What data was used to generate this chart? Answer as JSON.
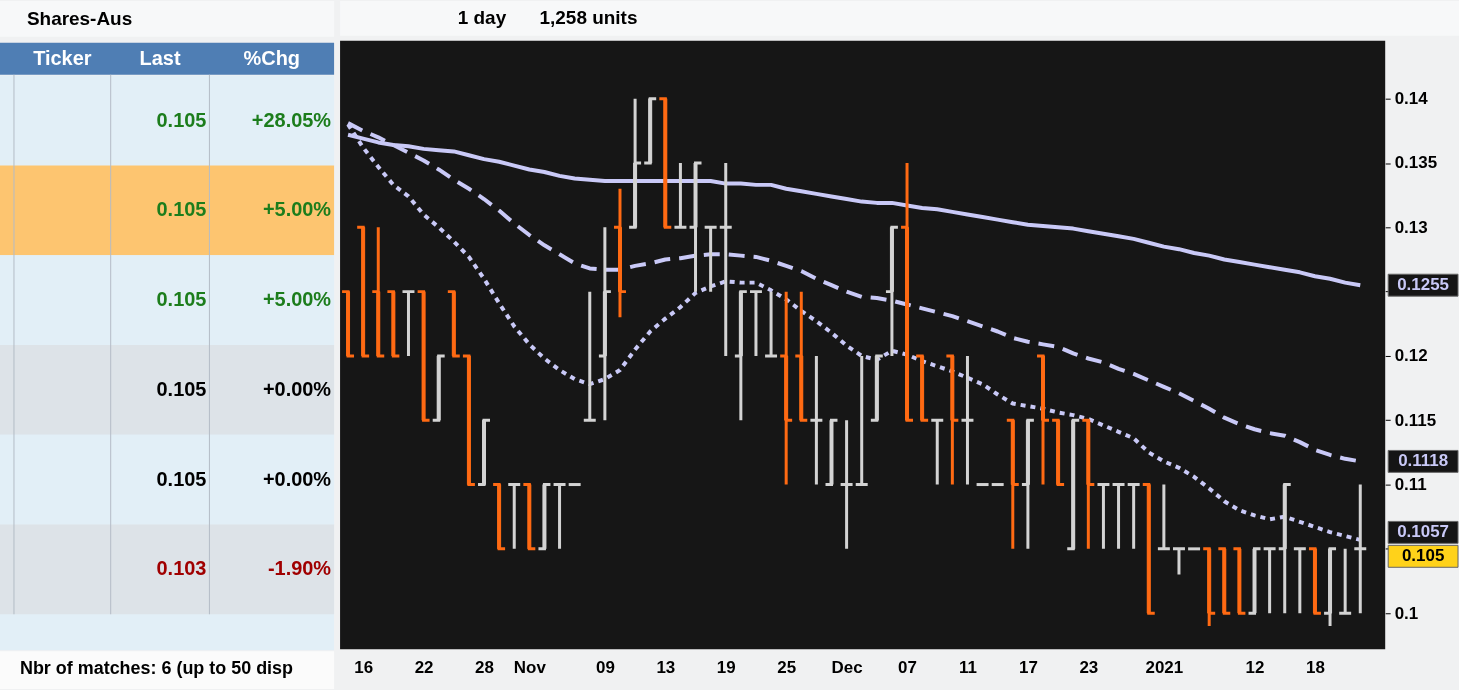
{
  "chart_data": [
    {
      "type": "other",
      "title": "Shares-Aus",
      "categories": [
        "Ticker",
        "Last",
        "%Chg"
      ],
      "cell_labels": [
        [
          null,
          "0.105",
          "+28.05%"
        ],
        [
          null,
          "0.105",
          "+5.00%"
        ],
        [
          null,
          "0.105",
          "+5.00%"
        ],
        [
          null,
          "0.105",
          "+0.00%"
        ],
        [
          null,
          "0.105",
          "+0.00%"
        ],
        [
          null,
          "0.103",
          "-1.90%"
        ]
      ],
      "annotations": [
        "Nbr of matches: 6 (up to 50 disp"
      ]
    },
    {
      "type": "candlestick",
      "categories": [
        null,
        "16",
        null,
        null,
        null,
        "22",
        null,
        null,
        null,
        "28",
        null,
        null,
        "Nov",
        null,
        null,
        null,
        null,
        "09",
        null,
        null,
        null,
        "13",
        null,
        null,
        null,
        "19",
        null,
        null,
        null,
        "25",
        null,
        null,
        null,
        "Dec",
        null,
        null,
        null,
        "07",
        null,
        null,
        null,
        "11",
        null,
        null,
        null,
        "17",
        null,
        null,
        null,
        "23",
        null,
        null,
        null,
        null,
        "2021",
        null,
        null,
        null,
        null,
        null,
        "12",
        null,
        null,
        null,
        "18",
        null,
        null,
        null
      ],
      "ohlc": [
        [
          0.125,
          0.125,
          0.12,
          0.12
        ],
        [
          0.13,
          0.13,
          0.12,
          0.12
        ],
        [
          0.125,
          0.13,
          0.12,
          0.12
        ],
        [
          0.125,
          0.125,
          0.12,
          0.12
        ],
        [
          0.125,
          0.125,
          0.12,
          0.125
        ],
        [
          0.125,
          0.125,
          0.115,
          0.115
        ],
        [
          0.115,
          0.12,
          0.115,
          0.12
        ],
        [
          0.125,
          0.125,
          0.12,
          0.12
        ],
        [
          0.12,
          0.12,
          0.11,
          0.11
        ],
        [
          0.11,
          0.115,
          0.11,
          0.115
        ],
        [
          0.11,
          0.11,
          0.105,
          0.105
        ],
        [
          0.11,
          0.11,
          0.105,
          0.11
        ],
        [
          0.11,
          0.11,
          0.105,
          0.105
        ],
        [
          0.105,
          0.11,
          0.105,
          0.11
        ],
        [
          0.11,
          0.11,
          0.105,
          0.11
        ],
        [
          0.11,
          0.11,
          0.11,
          0.11
        ],
        [
          0.115,
          0.125,
          0.115,
          0.115
        ],
        [
          0.12,
          0.13,
          0.115,
          0.125
        ],
        [
          0.13,
          0.133,
          0.123,
          0.125
        ],
        [
          0.13,
          0.14,
          0.13,
          0.135
        ],
        [
          0.135,
          0.14,
          0.135,
          0.14
        ],
        [
          0.14,
          0.14,
          0.13,
          0.13
        ],
        [
          0.13,
          0.135,
          0.13,
          0.13
        ],
        [
          0.13,
          0.135,
          0.125,
          0.135
        ],
        [
          0.13,
          0.13,
          0.125,
          0.13
        ],
        [
          0.13,
          0.135,
          0.12,
          0.13
        ],
        [
          0.12,
          0.125,
          0.115,
          0.125
        ],
        [
          0.125,
          0.125,
          0.12,
          0.125
        ],
        [
          0.12,
          0.125,
          0.12,
          0.12
        ],
        [
          0.12,
          0.125,
          0.11,
          0.115
        ],
        [
          0.12,
          0.125,
          0.115,
          0.115
        ],
        [
          0.115,
          0.12,
          0.11,
          0.115
        ],
        [
          0.11,
          0.115,
          0.11,
          0.115
        ],
        [
          0.11,
          0.115,
          0.105,
          0.11
        ],
        [
          0.11,
          0.12,
          0.11,
          0.11
        ],
        [
          0.115,
          0.12,
          0.115,
          0.12
        ],
        [
          0.125,
          0.13,
          0.12,
          0.13
        ],
        [
          0.13,
          0.135,
          0.115,
          0.115
        ],
        [
          0.12,
          0.12,
          0.115,
          0.115
        ],
        [
          0.115,
          0.115,
          0.11,
          0.115
        ],
        [
          0.12,
          0.12,
          0.11,
          0.115
        ],
        [
          0.115,
          0.12,
          0.11,
          0.115
        ],
        [
          0.11,
          0.11,
          0.11,
          0.11
        ],
        [
          0.11,
          0.11,
          0.11,
          0.11
        ],
        [
          0.115,
          0.115,
          0.105,
          0.11
        ],
        [
          0.11,
          0.115,
          0.105,
          0.115
        ],
        [
          0.12,
          0.12,
          0.11,
          0.115
        ],
        [
          0.115,
          0.115,
          0.11,
          0.11
        ],
        [
          0.105,
          0.115,
          0.105,
          0.115
        ],
        [
          0.115,
          0.115,
          0.105,
          0.11
        ],
        [
          0.11,
          0.11,
          0.105,
          0.11
        ],
        [
          0.11,
          0.11,
          0.105,
          0.11
        ],
        [
          0.11,
          0.11,
          0.105,
          0.11
        ],
        [
          0.11,
          0.11,
          0.1,
          0.1
        ],
        [
          0.105,
          0.11,
          0.105,
          0.105
        ],
        [
          0.105,
          0.105,
          0.103,
          0.105
        ],
        [
          0.105,
          0.105,
          0.105,
          0.105
        ],
        [
          0.105,
          0.105,
          0.099,
          0.1
        ],
        [
          0.105,
          0.105,
          0.1,
          0.1
        ],
        [
          0.105,
          0.105,
          0.1,
          0.1
        ],
        [
          0.1,
          0.105,
          0.1,
          0.105
        ],
        [
          0.105,
          0.105,
          0.1,
          0.105
        ],
        [
          0.105,
          0.11,
          0.1,
          0.11
        ],
        [
          0.105,
          0.105,
          0.1,
          0.105
        ],
        [
          0.105,
          0.105,
          0.1,
          0.1
        ],
        [
          0.1,
          0.105,
          0.099,
          0.105
        ],
        [
          0.1,
          0.105,
          0.1,
          0.1
        ],
        [
          0.105,
          0.11,
          0.1,
          0.105
        ]
      ],
      "colors": [
        "#ff6a13",
        "#ff6a13",
        "#ff6a13",
        "#ff6a13",
        "#d3d3d3",
        "#ff6a13",
        "#d3d3d3",
        "#ff6a13",
        "#ff6a13",
        "#d3d3d3",
        "#ff6a13",
        "#d3d3d3",
        "#ff6a13",
        "#d3d3d3",
        "#d3d3d3",
        "#d3d3d3",
        "#d3d3d3",
        "#d3d3d3",
        "#ff6a13",
        "#d3d3d3",
        "#d3d3d3",
        "#ff6a13",
        "#d3d3d3",
        "#d3d3d3",
        "#d3d3d3",
        "#d3d3d3",
        "#d3d3d3",
        "#d3d3d3",
        "#d3d3d3",
        "#ff6a13",
        "#ff6a13",
        "#d3d3d3",
        "#d3d3d3",
        "#d3d3d3",
        "#d3d3d3",
        "#d3d3d3",
        "#d3d3d3",
        "#ff6a13",
        "#ff6a13",
        "#d3d3d3",
        "#ff6a13",
        "#d3d3d3",
        "#d3d3d3",
        "#d3d3d3",
        "#ff6a13",
        "#d3d3d3",
        "#ff6a13",
        "#ff6a13",
        "#d3d3d3",
        "#ff6a13",
        "#d3d3d3",
        "#d3d3d3",
        "#d3d3d3",
        "#ff6a13",
        "#d3d3d3",
        "#d3d3d3",
        "#d3d3d3",
        "#ff6a13",
        "#ff6a13",
        "#ff6a13",
        "#d3d3d3",
        "#d3d3d3",
        "#d3d3d3",
        "#d3d3d3",
        "#ff6a13",
        "#d3d3d3",
        "#d3d3d3",
        "#d3d3d3"
      ],
      "series": [
        {
          "type": "line",
          "color": "#c9c9f7",
          "line_style": "solid",
          "values": [
            0.1372,
            0.1369,
            0.1366,
            0.1364,
            0.1363,
            0.1361,
            0.136,
            0.1359,
            0.1356,
            0.1353,
            0.1351,
            0.1348,
            0.1345,
            0.1343,
            0.134,
            0.1338,
            0.1337,
            0.1336,
            0.1336,
            0.1336,
            0.1336,
            0.1336,
            0.1336,
            0.1336,
            0.1336,
            0.1334,
            0.1334,
            0.1333,
            0.1333,
            0.133,
            0.1328,
            0.1326,
            0.1324,
            0.1322,
            0.132,
            0.1319,
            0.1319,
            0.1317,
            0.1315,
            0.1314,
            0.1312,
            0.131,
            0.1308,
            0.1306,
            0.1304,
            0.1302,
            0.1301,
            0.13,
            0.1299,
            0.1297,
            0.1295,
            0.1293,
            0.1291,
            0.1288,
            0.1285,
            0.1283,
            0.128,
            0.1278,
            0.1275,
            0.1273,
            0.1271,
            0.1269,
            0.1267,
            0.1265,
            0.1262,
            0.126,
            0.1257,
            0.1255
          ]
        },
        {
          "type": "line",
          "color": "#c9c9f7",
          "line_style": "dashed",
          "values": [
            0.1381,
            0.1375,
            0.137,
            0.1364,
            0.1358,
            0.1352,
            0.1345,
            0.1337,
            0.133,
            0.1322,
            0.1313,
            0.1303,
            0.1294,
            0.1286,
            0.1279,
            0.1272,
            0.1268,
            0.1267,
            0.1267,
            0.127,
            0.1272,
            0.1275,
            0.1276,
            0.1278,
            0.1279,
            0.1279,
            0.1278,
            0.1277,
            0.1274,
            0.127,
            0.1266,
            0.126,
            0.1255,
            0.125,
            0.1246,
            0.1245,
            0.1243,
            0.124,
            0.1237,
            0.1234,
            0.1231,
            0.1227,
            0.1223,
            0.1219,
            0.1214,
            0.1211,
            0.1209,
            0.1207,
            0.1202,
            0.1198,
            0.1195,
            0.119,
            0.1186,
            0.1181,
            0.1176,
            0.1171,
            0.1165,
            0.1159,
            0.1152,
            0.1147,
            0.1143,
            0.114,
            0.1138,
            0.1133,
            0.1127,
            0.1123,
            0.112,
            0.1118
          ]
        },
        {
          "type": "line",
          "color": "#c9c9f7",
          "line_style": "dotted",
          "values": [
            0.138,
            0.1362,
            0.1347,
            0.1333,
            0.1324,
            0.131,
            0.13,
            0.1289,
            0.1277,
            0.126,
            0.1241,
            0.1223,
            0.1209,
            0.1198,
            0.1189,
            0.1182,
            0.1178,
            0.1182,
            0.1189,
            0.1205,
            0.1219,
            0.1229,
            0.1238,
            0.1249,
            0.1254,
            0.1258,
            0.1257,
            0.1257,
            0.1251,
            0.1244,
            0.1235,
            0.1227,
            0.1218,
            0.1208,
            0.12,
            0.1197,
            0.1204,
            0.1201,
            0.1196,
            0.1192,
            0.1188,
            0.1183,
            0.1178,
            0.117,
            0.1163,
            0.1161,
            0.1159,
            0.1156,
            0.1154,
            0.1151,
            0.1146,
            0.1141,
            0.1136,
            0.1125,
            0.1118,
            0.1113,
            0.1106,
            0.1097,
            0.1087,
            0.108,
            0.1076,
            0.1073,
            0.1075,
            0.1071,
            0.1067,
            0.1063,
            0.106,
            0.1057
          ]
        }
      ],
      "ylim": [
        0.0972,
        0.1445
      ],
      "yticks": [
        0.1,
        {
          "value": 0.105,
          "label": null
        },
        0.11,
        0.115,
        0.12,
        {
          "value": 0.125,
          "label": null
        },
        0.13,
        0.135,
        0.14
      ],
      "annotations": [
        "1 day",
        "1,258 units",
        "0.1255",
        "0.1118",
        "0.1057",
        "0.105"
      ]
    }
  ]
}
